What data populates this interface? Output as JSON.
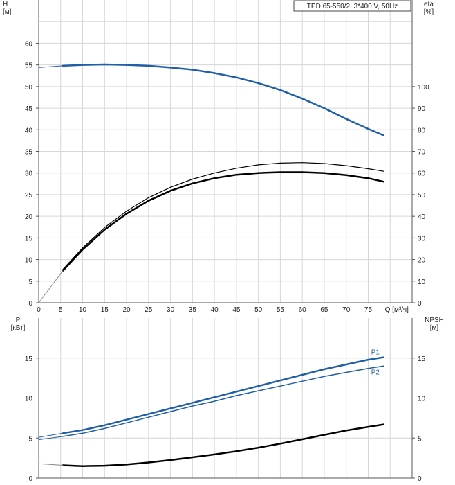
{
  "chart_data": [
    {
      "type": "line",
      "title": "TPD 65-550/2, 3*400 V, 50Hz",
      "xlabel": "Q [м³/ч]",
      "ylabel": "H\n[м]",
      "y2label": "eta\n[%]",
      "xlim": [
        0,
        85
      ],
      "ylim": [
        0,
        70
      ],
      "y2lim": [
        0,
        140
      ],
      "xticks": [
        0,
        5,
        10,
        15,
        20,
        25,
        30,
        35,
        40,
        45,
        50,
        55,
        60,
        65,
        70,
        75
      ],
      "yticks": [
        0,
        5,
        10,
        15,
        20,
        25,
        30,
        35,
        40,
        45,
        50,
        55,
        60
      ],
      "y2ticks": [
        0,
        10,
        20,
        30,
        40,
        50,
        60,
        70,
        80,
        90,
        100
      ],
      "grid": true,
      "series": [
        {
          "name": "",
          "axis": "left",
          "color": "#1f5fa6",
          "width": 2.5,
          "x": [
            5.5,
            10,
            15,
            20,
            25,
            30,
            35,
            40,
            45,
            50,
            55,
            60,
            65,
            70,
            75,
            78.5
          ],
          "y": [
            54.8,
            55.0,
            55.1,
            55.0,
            54.8,
            54.4,
            53.9,
            53.1,
            52.1,
            50.8,
            49.2,
            47.2,
            45.0,
            42.5,
            40.2,
            38.7
          ]
        },
        {
          "name": "",
          "axis": "left",
          "color": "#1f5fa6",
          "width": 1,
          "dashed": true,
          "x": [
            0,
            5.5
          ],
          "y": [
            54.4,
            54.8
          ]
        },
        {
          "name": "",
          "axis": "right",
          "color": "#000000",
          "width": 1.2,
          "x": [
            5.5,
            10,
            15,
            20,
            25,
            30,
            35,
            40,
            45,
            50,
            55,
            60,
            65,
            70,
            75,
            78.5
          ],
          "y": [
            15.4,
            25.4,
            34.8,
            42.4,
            48.6,
            53.4,
            57.2,
            60.0,
            62.2,
            63.8,
            64.6,
            64.8,
            64.4,
            63.4,
            62.0,
            60.8
          ]
        },
        {
          "name": "",
          "axis": "left",
          "color": "#000000",
          "width": 2.5,
          "x": [
            5.5,
            10,
            15,
            20,
            25,
            30,
            35,
            40,
            45,
            50,
            55,
            60,
            65,
            70,
            75,
            78.5
          ],
          "y": [
            7.4,
            12.3,
            16.9,
            20.6,
            23.6,
            25.9,
            27.6,
            28.8,
            29.6,
            30.0,
            30.2,
            30.2,
            30.0,
            29.5,
            28.8,
            28.0
          ]
        },
        {
          "name": "",
          "axis": "left",
          "color": "#888888",
          "width": 1,
          "x": [
            0,
            5.5
          ],
          "y": [
            0,
            7.4
          ]
        }
      ]
    },
    {
      "type": "line",
      "xlabel": "",
      "ylabel": "P\n[кВт]",
      "y2label": "NPSH\n[м]",
      "xlim": [
        0,
        85
      ],
      "ylim": [
        0,
        20
      ],
      "y2lim": [
        0,
        20
      ],
      "yticks": [
        0,
        5,
        10,
        15
      ],
      "y2ticks": [
        0,
        5,
        10,
        15
      ],
      "grid": true,
      "series": [
        {
          "name": "P1",
          "axis": "left",
          "color": "#1f5fa6",
          "width": 2.5,
          "x": [
            5.5,
            10,
            15,
            20,
            25,
            30,
            35,
            40,
            45,
            50,
            55,
            60,
            65,
            70,
            75,
            78.5
          ],
          "y": [
            5.6,
            6.0,
            6.6,
            7.3,
            8.0,
            8.7,
            9.4,
            10.1,
            10.8,
            11.5,
            12.2,
            12.9,
            13.6,
            14.2,
            14.8,
            15.1
          ]
        },
        {
          "name": "P2",
          "axis": "left",
          "color": "#1f5fa6",
          "width": 1.5,
          "x": [
            5.5,
            10,
            15,
            20,
            25,
            30,
            35,
            40,
            45,
            50,
            55,
            60,
            65,
            70,
            75,
            78.5
          ],
          "y": [
            5.2,
            5.6,
            6.2,
            6.9,
            7.6,
            8.3,
            9.0,
            9.6,
            10.3,
            10.9,
            11.5,
            12.1,
            12.7,
            13.2,
            13.7,
            14.0
          ]
        },
        {
          "name": "",
          "axis": "left",
          "color": "#1f5fa6",
          "width": 1,
          "x": [
            0,
            5.5
          ],
          "y": [
            5.1,
            5.6
          ]
        },
        {
          "name": "",
          "axis": "left",
          "color": "#1f5fa6",
          "width": 1,
          "x": [
            0,
            5.5
          ],
          "y": [
            4.8,
            5.2
          ]
        },
        {
          "name": "",
          "axis": "right",
          "color": "#000000",
          "width": 2.5,
          "x": [
            5.5,
            10,
            15,
            20,
            25,
            30,
            35,
            40,
            45,
            50,
            55,
            60,
            65,
            70,
            75,
            78.5
          ],
          "y": [
            1.6,
            1.5,
            1.55,
            1.7,
            1.95,
            2.25,
            2.6,
            2.95,
            3.35,
            3.8,
            4.3,
            4.85,
            5.4,
            5.95,
            6.4,
            6.7
          ]
        },
        {
          "name": "",
          "axis": "right",
          "color": "#888888",
          "width": 1,
          "x": [
            0,
            5.5
          ],
          "y": [
            1.8,
            1.6
          ]
        }
      ]
    }
  ]
}
